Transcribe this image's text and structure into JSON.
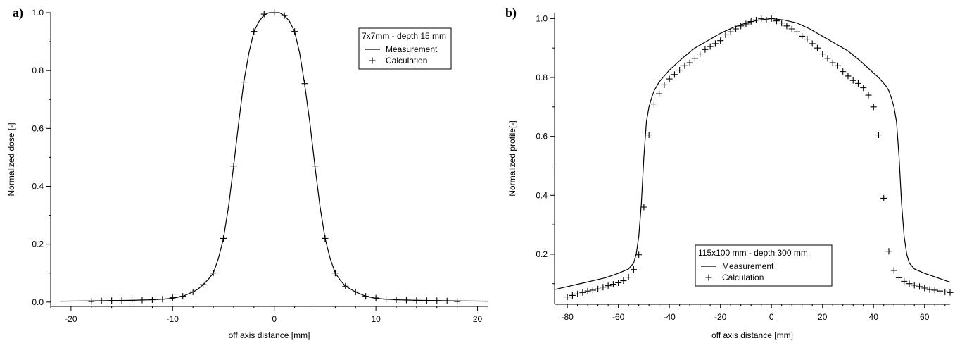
{
  "figure": {
    "background": "#ffffff",
    "line_color": "#000000"
  },
  "chart_data": [
    {
      "panel_label": "a)",
      "type": "line",
      "title": "",
      "xlabel": "off axis distance [mm]",
      "ylabel": "Normalized dose [-]",
      "xlim": [
        -22,
        21
      ],
      "ylim": [
        -0.015,
        1.0
      ],
      "xticks": [
        -20,
        -10,
        0,
        10,
        20
      ],
      "xtick_labels": [
        "-20",
        "-10",
        "0",
        "10",
        "20"
      ],
      "yticks": [
        0.0,
        0.2,
        0.4,
        0.6,
        0.8,
        1.0
      ],
      "ytick_labels": [
        "0.0",
        "0.2",
        "0.4",
        "0.6",
        "0.8",
        "1.0"
      ],
      "legend": {
        "title": "7x7mm  - depth 15 mm",
        "entries": [
          "Measurement",
          "Calculation"
        ],
        "placement": "top-right"
      },
      "grid": false,
      "series": [
        {
          "name": "Measurement",
          "style": "line",
          "x": [
            -21,
            -18,
            -16,
            -14,
            -12,
            -11,
            -10,
            -9,
            -8,
            -7.5,
            -7,
            -6.5,
            -6,
            -5.5,
            -5,
            -4.5,
            -4,
            -3.5,
            -3,
            -2.5,
            -2,
            -1.5,
            -1,
            -0.5,
            0,
            0.5,
            1,
            1.5,
            2,
            2.5,
            3,
            3.5,
            4,
            4.5,
            5,
            5.5,
            6,
            6.5,
            7,
            7.5,
            8,
            9,
            10,
            11,
            12,
            14,
            16,
            18,
            21
          ],
          "y": [
            0.003,
            0.004,
            0.005,
            0.006,
            0.008,
            0.01,
            0.013,
            0.02,
            0.035,
            0.045,
            0.06,
            0.078,
            0.1,
            0.15,
            0.22,
            0.33,
            0.47,
            0.62,
            0.76,
            0.86,
            0.935,
            0.97,
            0.992,
            1.0,
            1.0,
            1.0,
            0.99,
            0.97,
            0.935,
            0.86,
            0.75,
            0.62,
            0.47,
            0.33,
            0.22,
            0.15,
            0.1,
            0.075,
            0.055,
            0.045,
            0.035,
            0.02,
            0.013,
            0.01,
            0.008,
            0.006,
            0.005,
            0.004,
            0.003
          ]
        },
        {
          "name": "Calculation",
          "style": "markers",
          "x": [
            -18,
            -17,
            -16,
            -15,
            -14,
            -13,
            -12,
            -11,
            -10,
            -9,
            -8,
            -7,
            -6,
            -5,
            -4,
            -3,
            -2,
            -1,
            0,
            1,
            2,
            3,
            4,
            5,
            6,
            7,
            8,
            9,
            10,
            11,
            12,
            13,
            14,
            15,
            16,
            17,
            18
          ],
          "y": [
            0.002,
            0.004,
            0.005,
            0.005,
            0.006,
            0.007,
            0.008,
            0.01,
            0.015,
            0.02,
            0.035,
            0.06,
            0.1,
            0.22,
            0.47,
            0.76,
            0.935,
            0.995,
            1.0,
            0.99,
            0.935,
            0.755,
            0.47,
            0.22,
            0.1,
            0.055,
            0.035,
            0.02,
            0.014,
            0.01,
            0.008,
            0.007,
            0.006,
            0.005,
            0.005,
            0.004,
            0.002
          ]
        }
      ]
    },
    {
      "panel_label": "b)",
      "type": "line",
      "title": "",
      "xlabel": "off axis distance [mm]",
      "ylabel": "Normalized profile[-]",
      "xlim": [
        -85,
        70
      ],
      "ylim": [
        0.03,
        1.02
      ],
      "xticks": [
        -80,
        -60,
        -40,
        -20,
        0,
        20,
        40,
        60
      ],
      "xtick_labels": [
        "-80",
        "-60",
        "-40",
        "-20",
        "0",
        "20",
        "40",
        "60"
      ],
      "yticks": [
        0.2,
        0.4,
        0.6,
        0.8,
        1.0
      ],
      "ytick_labels": [
        "0.2",
        "0.4",
        "0.6",
        "0.8",
        "1.0"
      ],
      "legend": {
        "title": "115x100 mm - depth 300 mm",
        "entries": [
          "Measurement",
          "Calculation"
        ],
        "placement": "bottom-center"
      },
      "grid": false,
      "series": [
        {
          "name": "Measurement",
          "style": "line",
          "x": [
            -85,
            -80,
            -75,
            -70,
            -65,
            -60,
            -56,
            -54,
            -53,
            -52,
            -51,
            -50,
            -49,
            -48,
            -47,
            -46,
            -45,
            -44,
            -42,
            -40,
            -35,
            -30,
            -25,
            -20,
            -15,
            -10,
            -5,
            0,
            5,
            10,
            15,
            20,
            25,
            30,
            35,
            40,
            42,
            44,
            45,
            46,
            47,
            48,
            49,
            50,
            51,
            52,
            53,
            54,
            56,
            60,
            65,
            70
          ],
          "y": [
            0.08,
            0.09,
            0.1,
            0.11,
            0.12,
            0.135,
            0.15,
            0.17,
            0.2,
            0.26,
            0.37,
            0.53,
            0.65,
            0.7,
            0.73,
            0.755,
            0.77,
            0.785,
            0.805,
            0.825,
            0.865,
            0.9,
            0.925,
            0.95,
            0.97,
            0.985,
            0.995,
            1.0,
            0.995,
            0.985,
            0.965,
            0.94,
            0.915,
            0.89,
            0.855,
            0.815,
            0.8,
            0.78,
            0.77,
            0.755,
            0.73,
            0.7,
            0.65,
            0.53,
            0.37,
            0.26,
            0.2,
            0.17,
            0.15,
            0.135,
            0.12,
            0.105
          ]
        },
        {
          "name": "Calculation",
          "style": "markers",
          "x": [
            -80,
            -78,
            -76,
            -74,
            -72,
            -70,
            -68,
            -66,
            -64,
            -62,
            -60,
            -58,
            -56,
            -54,
            -52,
            -50,
            -48,
            -46,
            -44,
            -42,
            -40,
            -38,
            -36,
            -34,
            -32,
            -30,
            -28,
            -26,
            -24,
            -22,
            -20,
            -18,
            -16,
            -14,
            -12,
            -10,
            -8,
            -6,
            -4,
            -2,
            0,
            2,
            4,
            6,
            8,
            10,
            12,
            14,
            16,
            18,
            20,
            22,
            24,
            26,
            28,
            30,
            32,
            34,
            36,
            38,
            40,
            42,
            44,
            46,
            48,
            50,
            52,
            54,
            56,
            58,
            60,
            62,
            64,
            66,
            68,
            70
          ],
          "y": [
            0.055,
            0.06,
            0.065,
            0.07,
            0.075,
            0.078,
            0.082,
            0.088,
            0.093,
            0.098,
            0.103,
            0.11,
            0.122,
            0.148,
            0.198,
            0.36,
            0.605,
            0.71,
            0.745,
            0.775,
            0.795,
            0.81,
            0.825,
            0.84,
            0.85,
            0.865,
            0.88,
            0.895,
            0.905,
            0.915,
            0.925,
            0.945,
            0.955,
            0.965,
            0.975,
            0.982,
            0.99,
            0.995,
            1.0,
            0.995,
            1.0,
            0.992,
            0.985,
            0.975,
            0.965,
            0.955,
            0.94,
            0.93,
            0.915,
            0.9,
            0.88,
            0.865,
            0.85,
            0.84,
            0.82,
            0.805,
            0.79,
            0.78,
            0.765,
            0.74,
            0.7,
            0.605,
            0.39,
            0.21,
            0.145,
            0.12,
            0.108,
            0.1,
            0.095,
            0.09,
            0.085,
            0.08,
            0.078,
            0.075,
            0.072,
            0.07
          ]
        }
      ]
    }
  ]
}
